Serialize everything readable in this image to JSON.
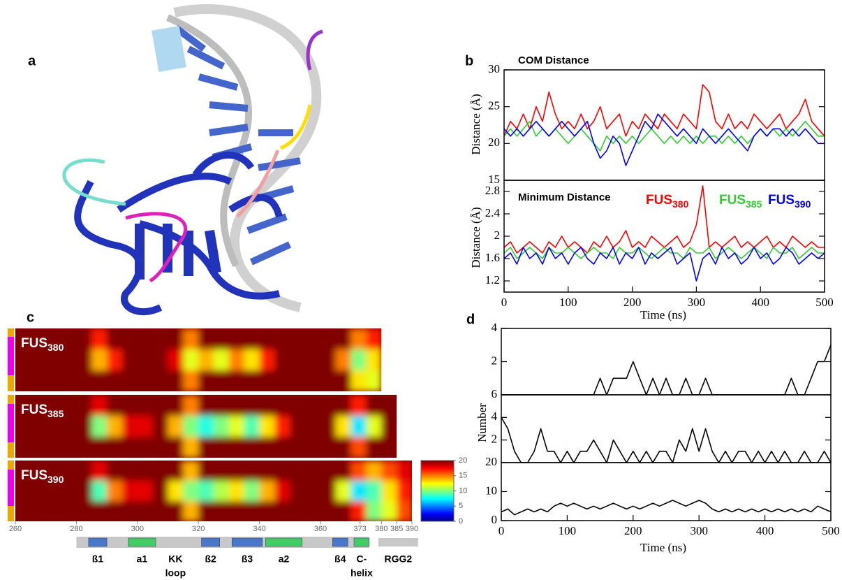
{
  "panel_labels": [
    "a",
    "b",
    "c",
    "d"
  ],
  "chart_data": [
    {
      "type": "line",
      "title": "COM Distance",
      "y_label": "Distance (Å)",
      "x": [
        0,
        10,
        20,
        30,
        40,
        50,
        60,
        70,
        80,
        90,
        100,
        110,
        120,
        130,
        140,
        150,
        160,
        170,
        180,
        190,
        200,
        210,
        220,
        230,
        240,
        250,
        260,
        270,
        280,
        290,
        300,
        310,
        320,
        330,
        340,
        350,
        360,
        370,
        380,
        390,
        400,
        410,
        420,
        430,
        440,
        450,
        460,
        470,
        480,
        490,
        500
      ],
      "xlim": [
        0,
        500
      ],
      "ylim": [
        15,
        30
      ],
      "yticks": [
        15,
        20,
        25,
        30
      ],
      "series": [
        {
          "color": "#ff0000",
          "values": [
            21,
            23,
            22,
            24,
            22,
            25,
            23,
            27,
            24,
            22,
            23,
            22,
            24,
            22,
            23,
            25,
            22,
            23,
            24,
            21,
            23,
            22,
            24,
            23,
            22,
            24,
            23,
            22,
            24,
            23,
            22,
            28,
            27,
            23,
            22,
            24,
            22,
            23,
            22,
            24,
            23,
            22,
            23,
            24,
            22,
            23,
            24,
            26,
            23,
            22,
            21
          ]
        },
        {
          "color": "#33cc33",
          "values": [
            21,
            22,
            21,
            22,
            23,
            21,
            22,
            21,
            22,
            21,
            20,
            21,
            22,
            21,
            20,
            19,
            21,
            20,
            21,
            20,
            21,
            20,
            21,
            22,
            21,
            20,
            21,
            20,
            21,
            20,
            21,
            20,
            21,
            21,
            20,
            21,
            20,
            21,
            20,
            21,
            22,
            21,
            22,
            21,
            22,
            21,
            22,
            23,
            22,
            21,
            21
          ]
        },
        {
          "color": "#0000ff",
          "values": [
            22,
            21,
            22,
            21,
            22,
            23,
            22,
            21,
            22,
            23,
            22,
            21,
            22,
            23,
            20,
            18,
            19,
            21,
            20,
            17,
            19,
            21,
            23,
            22,
            24,
            23,
            22,
            21,
            22,
            21,
            20,
            22,
            21,
            20,
            21,
            22,
            21,
            20,
            19,
            21,
            22,
            21,
            22,
            22,
            21,
            22,
            21,
            22,
            21,
            20,
            20
          ]
        }
      ]
    },
    {
      "type": "line",
      "title": "Minimum Distance",
      "y_label": "Distance (Å)",
      "x_label": "Time (ns)",
      "x": [
        0,
        10,
        20,
        30,
        40,
        50,
        60,
        70,
        80,
        90,
        100,
        110,
        120,
        130,
        140,
        150,
        160,
        170,
        180,
        190,
        200,
        210,
        220,
        230,
        240,
        250,
        260,
        270,
        280,
        290,
        300,
        310,
        320,
        330,
        340,
        350,
        360,
        370,
        380,
        390,
        400,
        410,
        420,
        430,
        440,
        450,
        460,
        470,
        480,
        490,
        500
      ],
      "xlim": [
        0,
        500
      ],
      "ylim": [
        1.0,
        3.0
      ],
      "xticks": [
        0,
        100,
        200,
        300,
        400,
        500
      ],
      "yticks": [
        1.2,
        1.6,
        2,
        2.4,
        2.8
      ],
      "series": [
        {
          "name": "FUS380",
          "color": "#ff0000",
          "values": [
            1.8,
            1.9,
            1.7,
            1.8,
            1.9,
            1.8,
            1.7,
            1.9,
            1.8,
            2.0,
            1.8,
            1.9,
            1.8,
            1.7,
            1.9,
            1.8,
            2.0,
            1.8,
            1.9,
            2.1,
            1.8,
            1.9,
            1.8,
            2.0,
            1.9,
            1.8,
            1.9,
            2.0,
            1.8,
            1.9,
            2.2,
            2.9,
            1.8,
            1.9,
            1.8,
            1.9,
            2.0,
            1.8,
            1.9,
            1.8,
            1.9,
            2.0,
            1.8,
            1.9,
            1.8,
            2.0,
            1.9,
            1.8,
            1.9,
            1.8,
            1.8
          ]
        },
        {
          "name": "FUS385",
          "color": "#33cc33",
          "values": [
            1.7,
            1.8,
            1.6,
            1.7,
            1.8,
            1.7,
            1.6,
            1.8,
            1.7,
            1.7,
            1.8,
            1.7,
            1.6,
            1.7,
            1.8,
            1.7,
            1.7,
            1.6,
            1.8,
            1.7,
            1.7,
            1.8,
            1.7,
            1.6,
            1.7,
            1.8,
            1.7,
            1.7,
            1.6,
            1.8,
            1.7,
            1.7,
            1.8,
            1.6,
            1.7,
            1.8,
            1.7,
            1.6,
            1.7,
            1.8,
            1.7,
            1.6,
            1.8,
            1.7,
            1.7,
            1.8,
            1.6,
            1.7,
            1.8,
            1.7,
            1.7
          ]
        },
        {
          "name": "FUS390",
          "color": "#0000ff",
          "values": [
            1.6,
            1.7,
            1.5,
            1.8,
            1.6,
            1.7,
            1.5,
            1.8,
            1.6,
            1.7,
            1.5,
            1.7,
            1.8,
            1.6,
            1.5,
            1.7,
            1.6,
            1.8,
            1.5,
            1.7,
            1.6,
            1.8,
            1.5,
            1.7,
            1.6,
            1.7,
            1.8,
            1.5,
            1.6,
            1.7,
            1.2,
            1.6,
            1.7,
            1.5,
            1.8,
            1.6,
            1.7,
            1.5,
            1.6,
            1.8,
            1.6,
            1.7,
            1.5,
            1.6,
            1.8,
            1.7,
            1.5,
            1.6,
            1.7,
            1.6,
            1.7
          ]
        }
      ]
    },
    {
      "type": "heatmap",
      "title": "FUS380",
      "xlim": [
        260,
        380
      ],
      "zlim": [
        0,
        20
      ],
      "x": [
        260,
        265,
        270,
        275,
        280,
        285,
        290,
        295,
        300,
        305,
        310,
        315,
        320,
        325,
        330,
        335,
        340,
        345,
        350,
        355,
        360,
        365,
        370,
        375
      ],
      "z": [
        [
          20,
          20,
          20,
          20,
          20,
          17,
          20,
          20,
          20,
          20,
          20,
          15,
          20,
          20,
          20,
          20,
          20,
          20,
          20,
          20,
          20,
          20,
          15,
          17
        ],
        [
          20,
          20,
          20,
          20,
          20,
          14,
          17,
          20,
          20,
          20,
          18,
          12,
          14,
          12,
          15,
          13,
          17,
          20,
          20,
          20,
          20,
          15,
          10,
          13
        ],
        [
          20,
          20,
          20,
          20,
          20,
          20,
          20,
          20,
          20,
          20,
          20,
          15,
          20,
          20,
          20,
          20,
          20,
          20,
          20,
          20,
          20,
          20,
          13,
          12
        ]
      ]
    },
    {
      "type": "heatmap",
      "title": "FUS385",
      "xlim": [
        260,
        385
      ],
      "zlim": [
        0,
        20
      ],
      "x": [
        260,
        265,
        270,
        275,
        280,
        285,
        290,
        295,
        300,
        305,
        310,
        315,
        320,
        325,
        330,
        335,
        340,
        345,
        350,
        355,
        360,
        365,
        370,
        375,
        380
      ],
      "z": [
        [
          20,
          20,
          20,
          20,
          20,
          18,
          20,
          20,
          20,
          20,
          20,
          15,
          20,
          20,
          20,
          20,
          20,
          20,
          20,
          20,
          20,
          20,
          17,
          20,
          20
        ],
        [
          20,
          20,
          20,
          20,
          20,
          10,
          14,
          18,
          18,
          20,
          14,
          10,
          8,
          10,
          12,
          9,
          13,
          17,
          20,
          20,
          20,
          13,
          7,
          12,
          20
        ],
        [
          20,
          20,
          20,
          20,
          20,
          20,
          20,
          20,
          20,
          20,
          20,
          14,
          20,
          20,
          20,
          20,
          20,
          20,
          20,
          20,
          20,
          20,
          16,
          20,
          20
        ]
      ]
    },
    {
      "type": "heatmap",
      "title": "FUS390",
      "xlim": [
        260,
        390
      ],
      "zlim": [
        0,
        20
      ],
      "zticks": [
        0,
        5,
        10,
        15,
        20
      ],
      "x": [
        260,
        265,
        270,
        275,
        280,
        285,
        290,
        295,
        300,
        305,
        310,
        315,
        320,
        325,
        330,
        335,
        340,
        345,
        350,
        355,
        360,
        365,
        370,
        375,
        380,
        385
      ],
      "z": [
        [
          20,
          20,
          20,
          20,
          20,
          18,
          20,
          20,
          20,
          20,
          20,
          14,
          20,
          20,
          20,
          20,
          20,
          20,
          20,
          20,
          20,
          20,
          16,
          14,
          16,
          18
        ],
        [
          20,
          20,
          20,
          20,
          20,
          9,
          15,
          18,
          18,
          20,
          13,
          10,
          9,
          11,
          13,
          10,
          14,
          18,
          20,
          20,
          20,
          12,
          7,
          9,
          13,
          17
        ],
        [
          20,
          20,
          20,
          20,
          20,
          20,
          20,
          20,
          20,
          20,
          20,
          14,
          20,
          20,
          20,
          20,
          20,
          20,
          20,
          20,
          20,
          20,
          17,
          10,
          12,
          16
        ]
      ]
    },
    {
      "type": "track",
      "xlim": [
        260,
        390
      ],
      "xticks": [
        260,
        280,
        300,
        320,
        340,
        360,
        373,
        380,
        385,
        390
      ],
      "range": [
        280,
        376
      ],
      "color": "#c8c8c8",
      "domains": [
        {
          "label": [
            "ß1"
          ],
          "start": 284,
          "end": 290,
          "color": "#4a78c8"
        },
        {
          "label": [
            "a1"
          ],
          "start": 297,
          "end": 306,
          "color": "#44cc66"
        },
        {
          "label": [
            "KK",
            "loop"
          ],
          "start": 308,
          "end": 317,
          "color": "#c8c8c8"
        },
        {
          "label": [
            "ß2"
          ],
          "start": 321,
          "end": 327,
          "color": "#4a78c8"
        },
        {
          "label": [
            "ß3"
          ],
          "start": 331,
          "end": 341,
          "color": "#4a78c8"
        },
        {
          "label": [
            "a2"
          ],
          "start": 342,
          "end": 354,
          "color": "#44cc66"
        },
        {
          "label": [
            "ß4"
          ],
          "start": 364,
          "end": 369,
          "color": "#4a78c8"
        },
        {
          "label": [
            "C-",
            "helix"
          ],
          "start": 371,
          "end": 376,
          "color": "#44cc66"
        },
        {
          "label": [
            "RGG2"
          ],
          "start": 379,
          "end": 392,
          "color": "#c8c8c8"
        }
      ]
    },
    {
      "type": "line",
      "x": [
        0,
        10,
        20,
        30,
        40,
        50,
        60,
        70,
        80,
        90,
        100,
        110,
        120,
        130,
        140,
        150,
        160,
        170,
        180,
        190,
        200,
        210,
        220,
        230,
        240,
        250,
        260,
        270,
        280,
        290,
        300,
        310,
        320,
        330,
        340,
        350,
        360,
        370,
        380,
        390,
        400,
        410,
        420,
        430,
        440,
        450,
        460,
        470,
        480,
        490,
        500
      ],
      "xlim": [
        0,
        500
      ],
      "ylim": [
        0,
        4
      ],
      "yticks": [
        2,
        4
      ],
      "series": [
        {
          "color": "#000000",
          "values": [
            0,
            0,
            0,
            0,
            0,
            0,
            0,
            0,
            0,
            0,
            0,
            0,
            0,
            0,
            0,
            1,
            0,
            1,
            1,
            1,
            2,
            1,
            0,
            1,
            0,
            1,
            0,
            0,
            1,
            0,
            0,
            1,
            0,
            0,
            0,
            0,
            0,
            0,
            0,
            0,
            0,
            0,
            0,
            0,
            1,
            0,
            0,
            1,
            2,
            2,
            3
          ]
        }
      ]
    },
    {
      "type": "line",
      "y_label": "Number",
      "x": [
        0,
        10,
        20,
        30,
        40,
        50,
        60,
        70,
        80,
        90,
        100,
        110,
        120,
        130,
        140,
        150,
        160,
        170,
        180,
        190,
        200,
        210,
        220,
        230,
        240,
        250,
        260,
        270,
        280,
        290,
        300,
        310,
        320,
        330,
        340,
        350,
        360,
        370,
        380,
        390,
        400,
        410,
        420,
        430,
        440,
        450,
        460,
        470,
        480,
        490,
        500
      ],
      "xlim": [
        0,
        500
      ],
      "ylim": [
        0,
        6
      ],
      "yticks": [
        2,
        4,
        6
      ],
      "series": [
        {
          "color": "#000000",
          "values": [
            4,
            3,
            1,
            0,
            0,
            1,
            3,
            1,
            1,
            0,
            1,
            0,
            1,
            1,
            2,
            1,
            0,
            2,
            1,
            0,
            1,
            0,
            1,
            0,
            1,
            1,
            0,
            2,
            1,
            3,
            1,
            3,
            1,
            0,
            1,
            0,
            1,
            1,
            0,
            1,
            0,
            1,
            0,
            1,
            0,
            0,
            1,
            0,
            0,
            1,
            0
          ]
        }
      ]
    },
    {
      "type": "line",
      "x_label": "Time (ns)",
      "x": [
        0,
        10,
        20,
        30,
        40,
        50,
        60,
        70,
        80,
        90,
        100,
        110,
        120,
        130,
        140,
        150,
        160,
        170,
        180,
        190,
        200,
        210,
        220,
        230,
        240,
        250,
        260,
        270,
        280,
        290,
        300,
        310,
        320,
        330,
        340,
        350,
        360,
        370,
        380,
        390,
        400,
        410,
        420,
        430,
        440,
        450,
        460,
        470,
        480,
        490,
        500
      ],
      "xlim": [
        0,
        500
      ],
      "ylim": [
        0,
        20
      ],
      "xticks": [
        0,
        100,
        200,
        300,
        400,
        500
      ],
      "yticks": [
        0,
        10,
        20
      ],
      "series": [
        {
          "color": "#000000",
          "values": [
            3,
            4,
            2,
            3,
            4,
            3,
            4,
            3,
            5,
            6,
            5,
            6,
            5,
            4,
            5,
            4,
            5,
            6,
            5,
            4,
            5,
            4,
            5,
            6,
            5,
            6,
            7,
            6,
            5,
            6,
            7,
            6,
            4,
            3,
            4,
            3,
            4,
            3,
            4,
            3,
            4,
            3,
            4,
            3,
            4,
            3,
            4,
            3,
            5,
            4,
            3
          ]
        }
      ]
    }
  ]
}
